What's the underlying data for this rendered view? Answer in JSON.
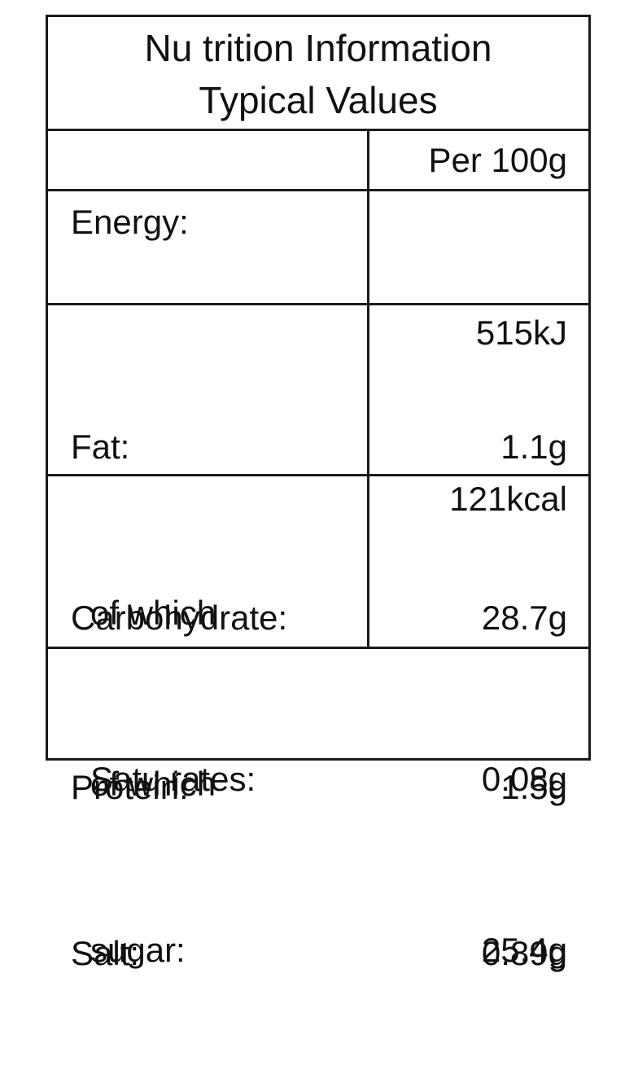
{
  "title": {
    "line1": "Nu trition Information",
    "line2": "Typical Values"
  },
  "header": {
    "column_label": "",
    "column_value": "Per 100g"
  },
  "rows": {
    "energy": {
      "label": "Energy:",
      "value_kj": "515kJ",
      "value_kcal": "121kcal"
    },
    "fat": {
      "label": "Fat:",
      "value": "1.1g",
      "sub_label_1": "of which",
      "sub_label_2": "Satu rates:",
      "sub_value": "0.08g"
    },
    "carbohydrate": {
      "label": "Carbohydrate:",
      "value": "28.7g",
      "sub_label_1": "of which",
      "sub_label_2": "sugar:",
      "sub_value": "25.4g"
    },
    "protein": {
      "label": "Protein:",
      "value": "1.5g"
    },
    "salt": {
      "label": "Salt:",
      "value": "0.89g"
    }
  }
}
